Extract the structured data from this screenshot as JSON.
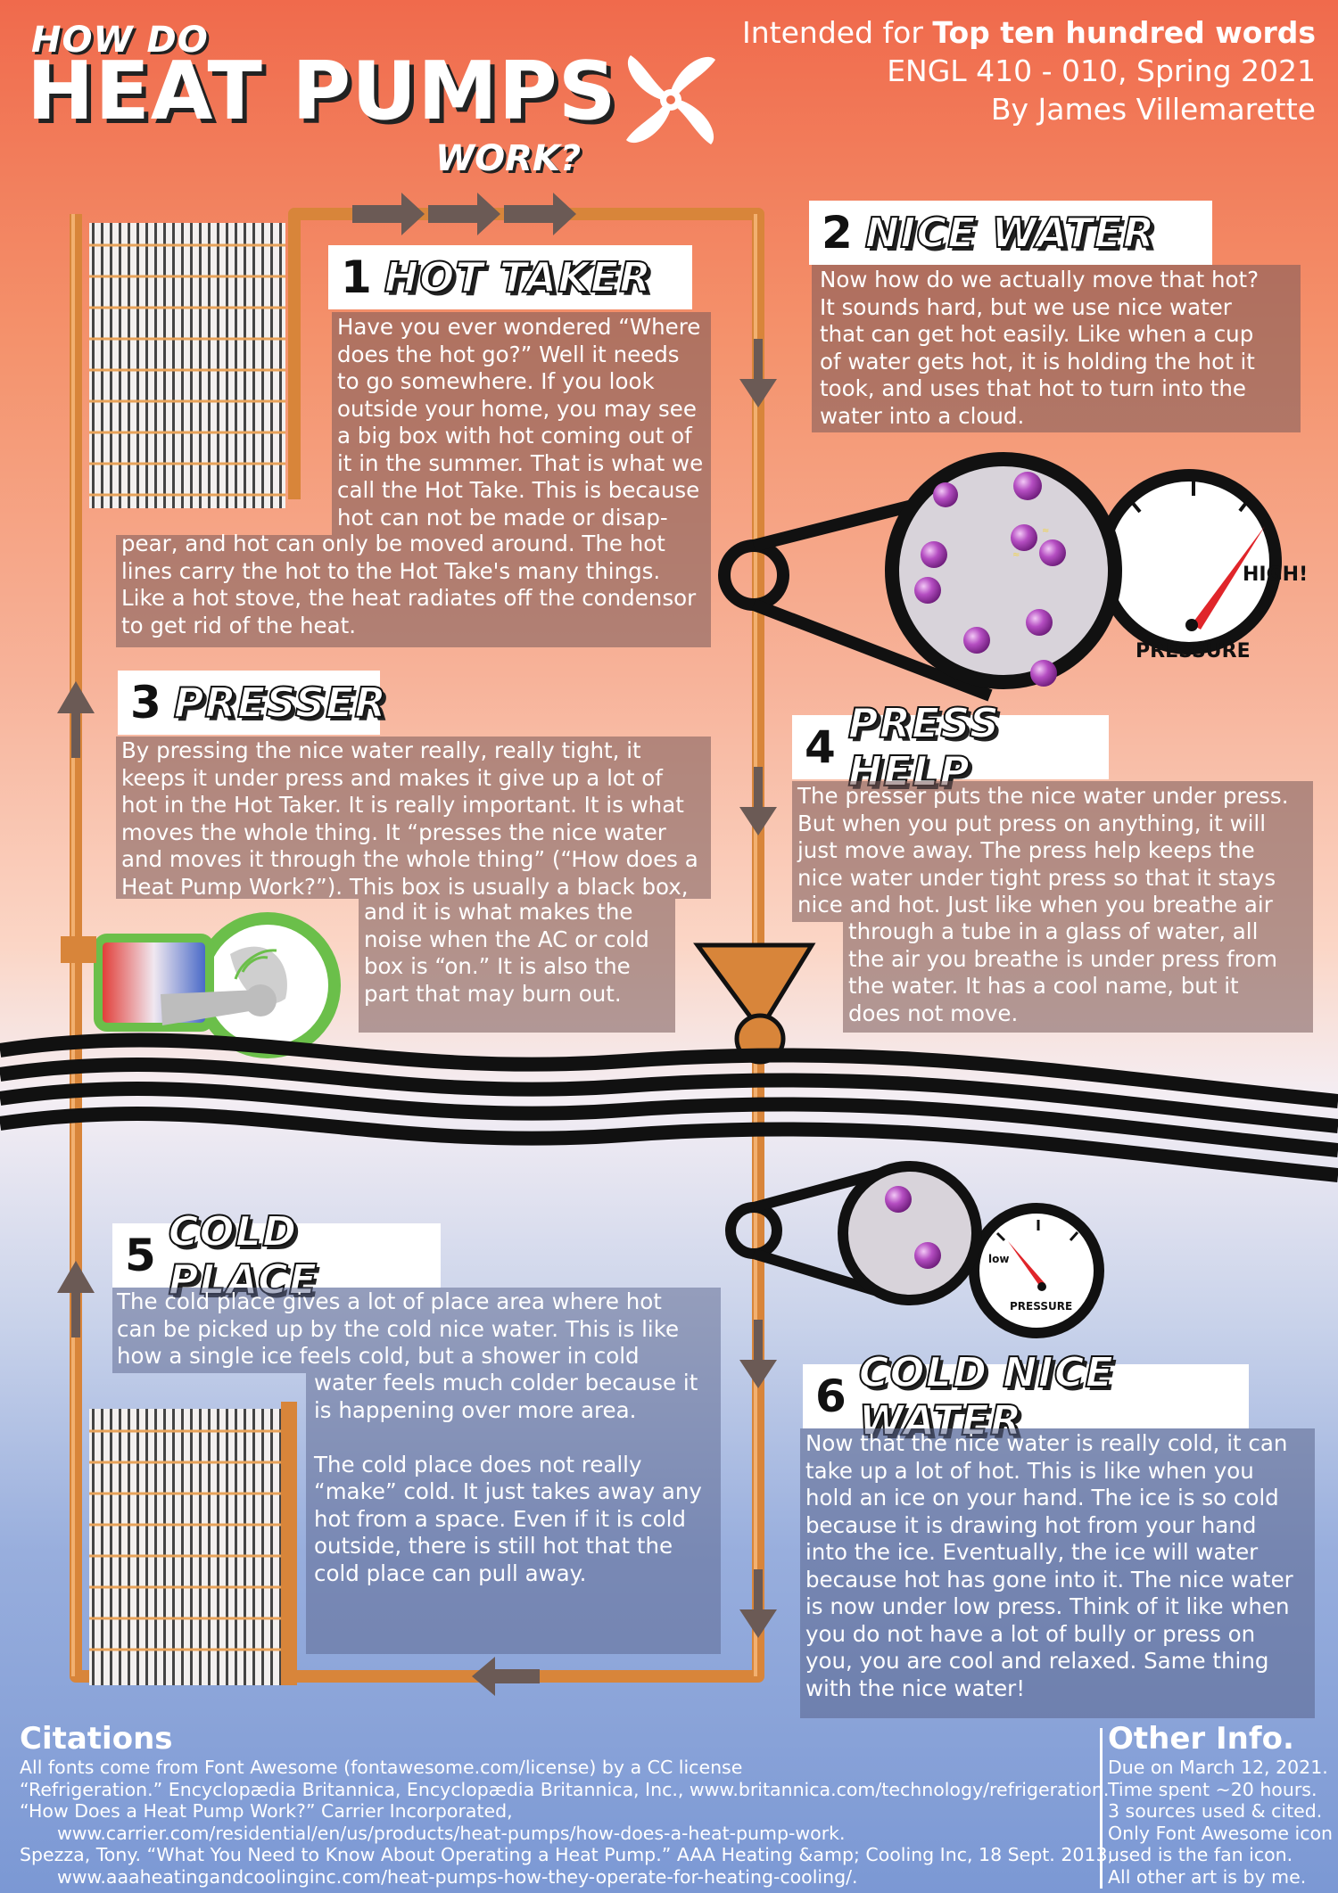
{
  "title": {
    "how": "HOW DO",
    "main": "HEAT PUMPS",
    "work": "WORK?"
  },
  "meta": {
    "line1_prefix": "Intended for ",
    "line1_bold": "Top ten hundred words",
    "line2": "ENGL 410 - 010, Spring 2021",
    "line3": "By James Villemarette"
  },
  "sections": {
    "s1": {
      "num": "1",
      "title": "HOT TAKER",
      "text_a": "Have you ever wondered “Where\ndoes the hot go?” Well it needs\nto go somewhere. If you look\noutside your home, you may see\na big box with hot coming out of\nit in the summer. That is what we\ncall the Hot Take. This is because\nhot can not be made or disap-",
      "text_b": "pear, and hot can only be moved around. The hot\nlines carry the hot to the Hot Take's many things.\nLike a hot stove, the heat radiates off the condensor\nto get rid of the heat."
    },
    "s2": {
      "num": "2",
      "title": "NICE WATER",
      "text": "Now how do we actually move that hot?\nIt sounds hard, but we use nice water\nthat can get hot easily. Like when a cup\nof water gets hot, it is holding the hot it\ntook, and uses that hot to turn into the\nwater into a cloud."
    },
    "s3": {
      "num": "3",
      "title": "PRESSER",
      "text_a": "By pressing the nice water really, really tight, it\nkeeps it under press and makes it give up a lot of\nhot in the Hot Taker. It is really important. It is what\nmoves the whole thing. It “presses the nice water\nand moves it through the whole thing” (“How does a\nHeat Pump Work?”). This box is usually a black box,",
      "text_b": "and it is what makes the\nnoise when the AC or cold\nbox is “on.” It is also the\npart that may burn out."
    },
    "s4": {
      "num": "4",
      "title": "PRESS HELP",
      "text_a": "The presser puts the nice water under press.\nBut when you put press on anything, it will\njust move away. The press help keeps the\nnice water under tight press so that it stays\nnice and hot. Just like when you breathe air",
      "text_b": "through a tube in a glass of water, all\nthe air you breathe is under press from\nthe water. It has a cool name, but it\ndoes not move."
    },
    "s5": {
      "num": "5",
      "title": "COLD PLACE",
      "text_a": "The cold place gives a lot of place area where hot\ncan be picked up by the cold nice water. This is like\nhow a single ice feels cold, but a shower in cold",
      "text_b": "water feels much colder because it\nis happening over more area.\n\nThe cold place does not really\n“make” cold. It just takes away any\nhot from a space. Even if it is cold\noutside, there is still hot that the\ncold place can pull away."
    },
    "s6": {
      "num": "6",
      "title": "COLD NICE WATER",
      "text": "Now that the nice water is really cold, it can\ntake up a lot of hot. This is like when you\nhold an ice on your hand. The ice is so cold\nbecause it is drawing hot from your hand\ninto the ice. Eventually, the ice will water\nbecause hot has gone into it. The nice water\nis now under low press. Think of it like when\nyou do not have a lot of bully or press on\nyou, you are cool and relaxed. Same thing\nwith the nice water!"
    }
  },
  "gauges": {
    "high": {
      "label": "PRESSURE",
      "reading": "HIGH!"
    },
    "low": {
      "label": "PRESSURE",
      "reading": "low"
    }
  },
  "citations": {
    "title": "Citations",
    "lines": [
      {
        "text": "All fonts come from Font Awesome (fontawesome.com/license) by a CC license",
        "indent": false
      },
      {
        "text": "“Refrigeration.” Encyclopædia Britannica, Encyclopædia Britannica, Inc., www.britannica.com/technology/refrigeration.",
        "indent": false
      },
      {
        "text": "“How Does a Heat Pump Work?” Carrier Incorporated,",
        "indent": false
      },
      {
        "text": "www.carrier.com/residential/en/us/products/heat-pumps/how-does-a-heat-pump-work.",
        "indent": true
      },
      {
        "text": "Spezza, Tony. “What You Need to Know About Operating a Heat Pump.” AAA Heating &amp; Cooling Inc, 18 Sept. 2013,",
        "indent": false
      },
      {
        "text": "www.aaaheatingandcoolinginc.com/heat-pumps-how-they-operate-for-heating-cooling/.",
        "indent": true
      }
    ]
  },
  "other_info": {
    "title": "Other Info.",
    "lines": [
      "Due on March 12, 2021.",
      "Time spent ~20 hours.",
      "3 sources used & cited.",
      "Only Font Awesome icon",
      "used is the fan icon.",
      "All other art is by me."
    ]
  },
  "colors": {
    "pipe": "#d8853a",
    "pipe_light": "#f0a55a",
    "arrow": "#6b5a55",
    "band": "#111111",
    "molecule": "#a23bb0"
  }
}
